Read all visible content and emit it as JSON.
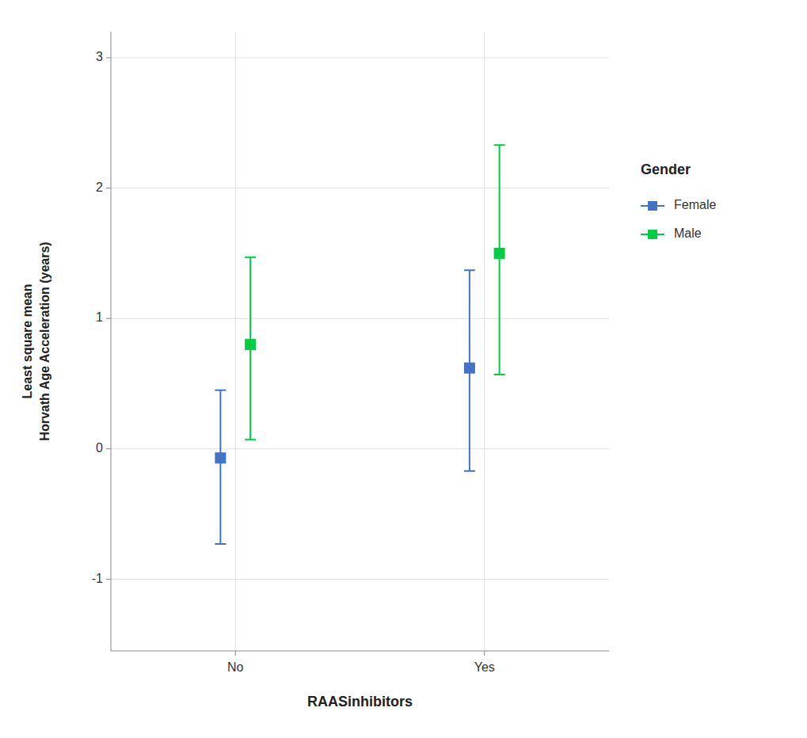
{
  "chart_data": {
    "type": "errorbar",
    "categories": [
      "No",
      "Yes"
    ],
    "xlabel": "RAASinhibitors",
    "ylabel": "Least square mean\nHorvath Age Acceleration (years)",
    "legend_title": "Gender",
    "legend": "right",
    "grid": true,
    "ylim": [
      -1.55,
      3.2
    ],
    "yticks": [
      -1,
      0,
      1,
      2,
      3
    ],
    "series": [
      {
        "name": "Female",
        "color": "#4472C4",
        "marker": "square",
        "values": [
          -0.07,
          0.62
        ],
        "ci_low": [
          -0.73,
          -0.17
        ],
        "ci_high": [
          0.45,
          1.37
        ]
      },
      {
        "name": "Male",
        "color": "#00CC44",
        "marker": "square",
        "values": [
          0.8,
          1.5
        ],
        "ci_low": [
          0.07,
          0.57
        ],
        "ci_high": [
          1.47,
          2.33
        ]
      }
    ]
  }
}
